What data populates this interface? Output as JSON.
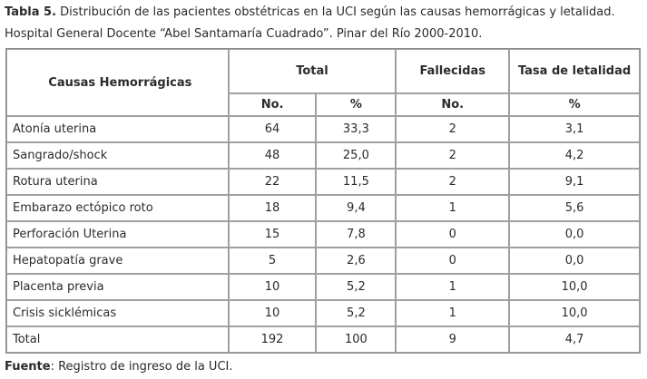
{
  "caption": {
    "label": "Tabla 5.",
    "text": " Distribución de las pacientes obstétricas en la UCI según las causas hemorrágicas y letalidad. Hospital General Docente “Abel Santamaría Cuadrado”. Pinar del Río 2000-2010."
  },
  "table": {
    "headers": {
      "causes": "Causas Hemorrágicas",
      "total": "Total",
      "fallecidas": "Fallecidas",
      "tasa": "Tasa de letalidad",
      "sub_no": "No.",
      "sub_pct": "%",
      "sub_fall_no": "No.",
      "sub_tasa_pct": "%"
    },
    "rows": [
      {
        "cause": "Atonía uterina",
        "no": "64",
        "pct": "33,3",
        "fall": "2",
        "tasa": "3,1"
      },
      {
        "cause": "Sangrado/shock",
        "no": "48",
        "pct": "25,0",
        "fall": "2",
        "tasa": "4,2"
      },
      {
        "cause": "Rotura uterina",
        "no": "22",
        "pct": "11,5",
        "fall": "2",
        "tasa": "9,1"
      },
      {
        "cause": "Embarazo ectópico roto",
        "no": "18",
        "pct": "9,4",
        "fall": "1",
        "tasa": "5,6"
      },
      {
        "cause": "Perforación Uterina",
        "no": "15",
        "pct": "7,8",
        "fall": "0",
        "tasa": "0,0"
      },
      {
        "cause": "Hepatopatía grave",
        "no": "5",
        "pct": "2,6",
        "fall": "0",
        "tasa": "0,0"
      },
      {
        "cause": "Placenta previa",
        "no": "10",
        "pct": "5,2",
        "fall": "1",
        "tasa": "10,0"
      },
      {
        "cause": "Crisis sicklémicas",
        "no": "10",
        "pct": "5,2",
        "fall": "1",
        "tasa": "10,0"
      },
      {
        "cause": "Total",
        "no": "192",
        "pct": "100",
        "fall": "9",
        "tasa": "4,7"
      }
    ]
  },
  "footer": {
    "label": "Fuente",
    "text": ": Registro de ingreso de la UCI."
  }
}
